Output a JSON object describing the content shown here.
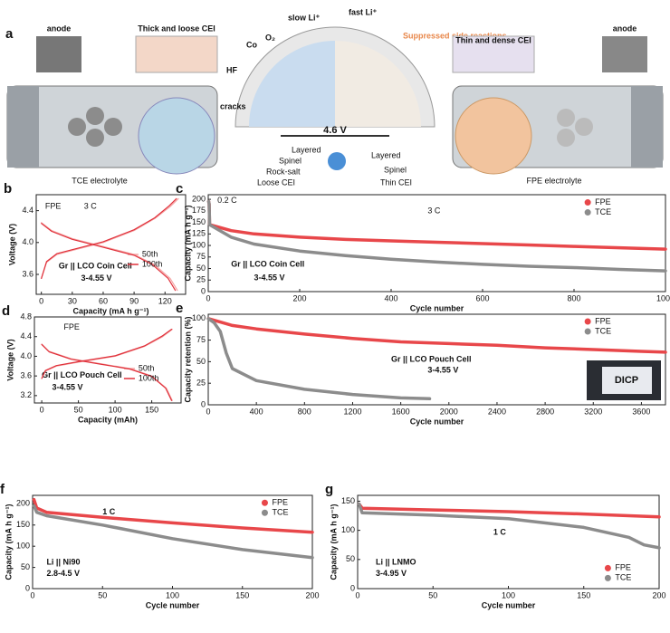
{
  "diagram": {
    "panel": "a",
    "left": {
      "anode": "anode",
      "cei": "Thick and loose CEI",
      "electrolyte": "TCE electrolyte"
    },
    "center": {
      "co": "Co",
      "o2": "O₂",
      "slow": "slow Li⁺",
      "hf": "HF",
      "cracks": "cracks",
      "fast": "fast Li⁺",
      "suppressed": "Suppressed side reactions",
      "voltage": "4.6 V",
      "left_layers": [
        "Layered",
        "Spinel",
        "Rock-salt",
        "Loose CEI"
      ],
      "right_layers": [
        "Layered",
        "Spinel",
        "Thin CEI"
      ]
    },
    "right": {
      "cei": "Thin and dense CEI",
      "anode": "anode",
      "electrolyte": "FPE electrolyte"
    }
  },
  "chart_data": [
    {
      "type": "line",
      "panel": "b",
      "xlabel": "Capacity (mA h g⁻¹)",
      "ylabel": "Voltage (V)",
      "xlim": [
        -5,
        140
      ],
      "xticks": [
        0,
        30,
        60,
        90,
        120
      ],
      "ylim": [
        3.35,
        4.6
      ],
      "yticks": [
        3.6,
        {
          "value": 4,
          "label": "4.0"
        },
        4.4
      ],
      "annotations": [
        "FPE",
        "3 C",
        "Gr || LCO Coin Cell",
        "3-4.55 V"
      ],
      "legend": "center right",
      "series": [
        {
          "name": "50th",
          "color": "#f4a3a3",
          "x": [
            0,
            5,
            15,
            30,
            60,
            90,
            110,
            125,
            133,
            null,
            0,
            10,
            30,
            60,
            90,
            110,
            125,
            132
          ],
          "values": [
            3.55,
            3.75,
            3.85,
            3.9,
            4.0,
            4.15,
            4.3,
            4.45,
            4.55,
            null,
            4.25,
            4.15,
            4.05,
            3.95,
            3.85,
            3.72,
            3.55,
            3.4
          ]
        },
        {
          "name": "100th",
          "color": "#e0303a",
          "x": [
            0,
            5,
            15,
            30,
            60,
            90,
            110,
            124,
            131,
            null,
            0,
            10,
            30,
            60,
            90,
            108,
            123,
            130
          ],
          "values": [
            3.55,
            3.76,
            3.86,
            3.91,
            4.01,
            4.16,
            4.31,
            4.46,
            4.55,
            null,
            4.24,
            4.14,
            4.04,
            3.94,
            3.84,
            3.72,
            3.55,
            3.4
          ]
        }
      ]
    },
    {
      "type": "line",
      "panel": "c",
      "xlabel": "Cycle number",
      "ylabel": "Capacity (mA h g⁻¹)",
      "xlim": [
        0,
        1000
      ],
      "xticks": [
        0,
        200,
        400,
        600,
        800,
        1000
      ],
      "ylim": [
        0,
        210
      ],
      "yticks": [
        0,
        25,
        50,
        75,
        100,
        125,
        150,
        175,
        200
      ],
      "annotations": [
        "0.2 C",
        "3 C",
        "Gr || LCO Coin Cell",
        "3-4.55 V"
      ],
      "legend": "upper right",
      "series": [
        {
          "name": "FPE",
          "color": "#e8474a",
          "x": [
            1,
            2,
            3,
            50,
            100,
            200,
            300,
            400,
            500,
            600,
            700,
            800,
            900,
            1000
          ],
          "values": [
            195,
            190,
            145,
            132,
            125,
            118,
            113,
            110,
            107,
            104,
            101,
            98,
            95,
            92
          ]
        },
        {
          "name": "TCE",
          "color": "#8c8c8c",
          "x": [
            1,
            2,
            3,
            50,
            100,
            200,
            300,
            400,
            500,
            600,
            700,
            800,
            900,
            1000
          ],
          "values": [
            195,
            190,
            145,
            118,
            103,
            88,
            78,
            70,
            64,
            59,
            55,
            52,
            48,
            45
          ]
        }
      ]
    },
    {
      "type": "line",
      "panel": "d",
      "xlabel": "Capacity (mAh)",
      "ylabel": "Voltage (V)",
      "xlim": [
        -10,
        190
      ],
      "xticks": [
        0,
        50,
        100,
        150
      ],
      "ylim": [
        3.05,
        4.8
      ],
      "yticks": [
        3.2,
        3.6,
        {
          "value": 4,
          "label": "4.0"
        },
        4.4,
        4.8
      ],
      "annotations": [
        "FPE",
        "Gr || LCO Pouch Cell",
        "3-4.55 V"
      ],
      "legend": "center right",
      "series": [
        {
          "name": "50th",
          "color": "#f4a3a3",
          "x": [
            0,
            5,
            20,
            50,
            100,
            140,
            165,
            178,
            null,
            0,
            10,
            40,
            80,
            120,
            150,
            170,
            178
          ],
          "values": [
            3.55,
            3.7,
            3.8,
            3.88,
            4.0,
            4.2,
            4.4,
            4.55,
            null,
            4.25,
            4.1,
            3.95,
            3.85,
            3.75,
            3.6,
            3.35,
            3.1
          ]
        },
        {
          "name": "100th",
          "color": "#e0303a",
          "x": [
            0,
            5,
            20,
            50,
            100,
            140,
            164,
            177,
            null,
            0,
            10,
            40,
            80,
            120,
            150,
            169,
            177
          ],
          "values": [
            3.55,
            3.71,
            3.81,
            3.89,
            4.01,
            4.21,
            4.41,
            4.55,
            null,
            4.24,
            4.09,
            3.94,
            3.84,
            3.74,
            3.59,
            3.35,
            3.1
          ]
        }
      ]
    },
    {
      "type": "line",
      "panel": "e",
      "xlabel": "Cycle number",
      "ylabel": "Capacity retention (%)",
      "xlim": [
        0,
        3800
      ],
      "xticks": [
        0,
        400,
        800,
        1200,
        1600,
        2000,
        2400,
        2800,
        3200,
        3600
      ],
      "ylim": [
        0,
        105
      ],
      "yticks": [
        0,
        25,
        50,
        75,
        100
      ],
      "annotations": [
        "Gr || LCO Pouch Cell",
        "3-4.55 V"
      ],
      "legend": "upper right",
      "inset_text": "DICP",
      "series": [
        {
          "name": "FPE",
          "color": "#e8474a",
          "x": [
            1,
            200,
            400,
            800,
            1200,
            1600,
            2000,
            2400,
            2800,
            3200,
            3600,
            3800
          ],
          "values": [
            100,
            92,
            88,
            82,
            77,
            73,
            71,
            69,
            66,
            64,
            62,
            61
          ]
        },
        {
          "name": "TCE",
          "color": "#8c8c8c",
          "x": [
            1,
            50,
            100,
            150,
            200,
            300,
            400,
            800,
            1200,
            1600,
            1840
          ],
          "values": [
            100,
            95,
            85,
            60,
            42,
            35,
            28,
            18,
            12,
            8,
            7
          ]
        }
      ]
    },
    {
      "type": "line",
      "panel": "f",
      "xlabel": "Cycle number",
      "ylabel": "Capacity (mA h g⁻¹)",
      "xlim": [
        0,
        200
      ],
      "xticks": [
        0,
        50,
        100,
        150,
        200
      ],
      "ylim": [
        0,
        220
      ],
      "yticks": [
        0,
        50,
        100,
        150,
        200
      ],
      "annotations": [
        "1 C",
        "Li || Ni90",
        "2.8-4.5 V"
      ],
      "legend": "upper right",
      "series": [
        {
          "name": "FPE",
          "color": "#e8474a",
          "x": [
            1,
            3,
            10,
            50,
            100,
            150,
            200
          ],
          "values": [
            210,
            190,
            180,
            168,
            155,
            143,
            133
          ]
        },
        {
          "name": "TCE",
          "color": "#8c8c8c",
          "x": [
            1,
            3,
            10,
            50,
            100,
            150,
            200
          ],
          "values": [
            195,
            180,
            172,
            150,
            118,
            92,
            73
          ]
        }
      ]
    },
    {
      "type": "line",
      "panel": "g",
      "xlabel": "Cycle number",
      "ylabel": "Capacity (mA h g⁻¹)",
      "xlim": [
        0,
        200
      ],
      "xticks": [
        0,
        50,
        100,
        150,
        200
      ],
      "ylim": [
        0,
        160
      ],
      "yticks": [
        0,
        50,
        100,
        150
      ],
      "annotations": [
        "1 C",
        "Li || LNMO",
        "3-4.95 V"
      ],
      "legend": "lower right",
      "series": [
        {
          "name": "FPE",
          "color": "#e8474a",
          "x": [
            1,
            3,
            50,
            100,
            150,
            200
          ],
          "values": [
            145,
            138,
            135,
            132,
            128,
            123
          ]
        },
        {
          "name": "TCE",
          "color": "#8c8c8c",
          "x": [
            1,
            3,
            50,
            100,
            150,
            180,
            190,
            200
          ],
          "values": [
            145,
            130,
            126,
            120,
            105,
            88,
            75,
            70
          ]
        }
      ]
    }
  ]
}
